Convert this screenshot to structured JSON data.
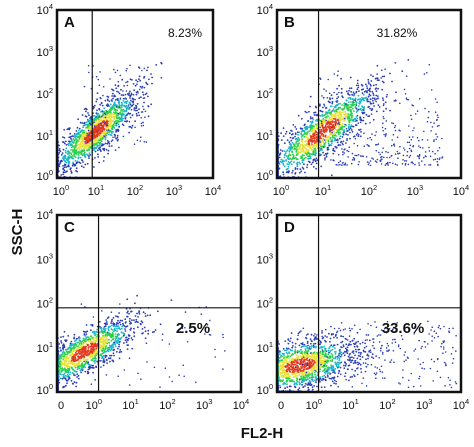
{
  "figure": {
    "y_axis_title": "SSC-H",
    "x_axis_title": "FL2-H"
  },
  "colors": {
    "frame": "#111111",
    "gate": "#111111",
    "density_low": "#2b3db5",
    "density_mid": "#19b4c8",
    "density_high": "#2bd04a",
    "density_peak": "#e8e23a",
    "density_core": "#e23a20"
  },
  "chart_data": [
    {
      "type": "scatter",
      "panel": "A",
      "label": "A",
      "percent_label": "8.23%",
      "percent_style": "small",
      "x_scale": "log",
      "y_scale": "log",
      "xlim": [
        1,
        10000
      ],
      "ylim": [
        1,
        10000
      ],
      "x_ticks": [
        "10",
        "10",
        "10",
        "10",
        "10"
      ],
      "x_tick_exponents": [
        "0",
        "1",
        "2",
        "3",
        "4"
      ],
      "y_ticks": [
        "10",
        "10",
        "10",
        "10",
        "10"
      ],
      "y_tick_exponents": [
        "0",
        "1",
        "2",
        "3",
        "4"
      ],
      "gate": {
        "vertical_x": 8,
        "horizontal_y": null
      },
      "population": {
        "center": [
          1.0,
          1.1
        ],
        "spread": [
          0.55,
          0.45
        ],
        "slope": 0.75,
        "tail_to_upper_right": "sparse"
      },
      "upper_right_fraction_percent": 8.23
    },
    {
      "type": "scatter",
      "panel": "B",
      "label": "B",
      "percent_label": "31.82%",
      "percent_style": "small",
      "x_scale": "log",
      "y_scale": "log",
      "xlim": [
        1,
        10000
      ],
      "ylim": [
        1,
        10000
      ],
      "x_ticks": [
        "10",
        "10",
        "10",
        "10",
        "10"
      ],
      "x_tick_exponents": [
        "0",
        "1",
        "2",
        "3",
        "4"
      ],
      "y_ticks": [
        "10",
        "10",
        "10",
        "10",
        "10"
      ],
      "y_tick_exponents": [
        "0",
        "1",
        "2",
        "3",
        "4"
      ],
      "gate": {
        "vertical_x": 8,
        "horizontal_y": null
      },
      "population": {
        "center": [
          1.0,
          1.1
        ],
        "spread": [
          0.6,
          0.5
        ],
        "slope": 0.8,
        "tail_to_upper_right": "dense"
      },
      "upper_right_fraction_percent": 31.82
    },
    {
      "type": "scatter",
      "panel": "C",
      "label": "C",
      "percent_label": "2.5%",
      "percent_style": "big",
      "x_scale": "log",
      "y_scale": "log",
      "xlim": [
        1,
        10000
      ],
      "ylim": [
        1,
        10000
      ],
      "x_ticks": [
        "0",
        "10",
        "10",
        "10",
        "10"
      ],
      "x_tick_exponents": [
        "",
        "0",
        "1",
        "2",
        "3"
      ],
      "x_tick_last": "10",
      "x_tick_last_exponent": "4",
      "y_ticks": [
        "10",
        "10",
        "10",
        "10",
        "10"
      ],
      "y_tick_exponents": [
        "0",
        "1",
        "2",
        "3",
        "4"
      ],
      "gate": {
        "vertical_x": 8,
        "horizontal_y": 80
      },
      "population": {
        "center": [
          0.6,
          0.9
        ],
        "spread": [
          0.55,
          0.4
        ],
        "slope": 0.55,
        "tail_to_upper_right": "very sparse"
      },
      "lower_right_fraction_percent": 2.5
    },
    {
      "type": "scatter",
      "panel": "D",
      "label": "D",
      "percent_label": "33.6%",
      "percent_style": "big",
      "x_scale": "log",
      "y_scale": "log",
      "xlim": [
        1,
        10000
      ],
      "ylim": [
        1,
        10000
      ],
      "x_ticks": [
        "0",
        "10",
        "10",
        "10",
        "10"
      ],
      "x_tick_exponents": [
        "",
        "0",
        "1",
        "2",
        "3"
      ],
      "x_tick_last": "10",
      "x_tick_last_exponent": "4",
      "y_ticks": [
        "10",
        "10",
        "10",
        "10",
        "10"
      ],
      "y_tick_exponents": [
        "0",
        "1",
        "2",
        "3",
        "4"
      ],
      "gate": {
        "vertical_x": 8,
        "horizontal_y": 80
      },
      "population": {
        "center": [
          0.5,
          0.6
        ],
        "spread": [
          0.6,
          0.45
        ],
        "slope": 0.2,
        "tail_to_upper_right": "spread right"
      },
      "lower_right_fraction_percent": 33.6
    }
  ]
}
